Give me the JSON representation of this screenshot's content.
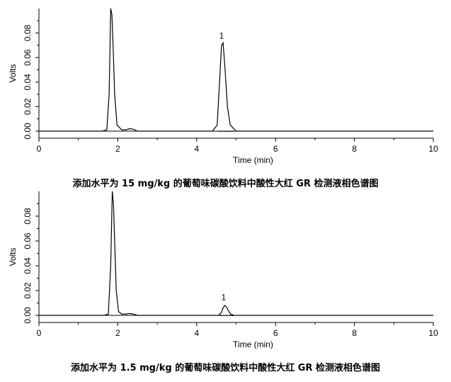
{
  "chart_data": [
    {
      "type": "line",
      "title": "",
      "caption": "添加水平为 15 mg/kg 的葡萄味碳酸饮料中酸性大红 GR 检测液相色谱图",
      "xlabel": "Time (min)",
      "ylabel": "Volts",
      "xlim": [
        0,
        10
      ],
      "ylim": [
        0,
        0.1
      ],
      "xticks": [
        "0",
        "2",
        "4",
        "6",
        "8",
        "10"
      ],
      "yticks": [
        "0.00",
        "0.02",
        "0.04",
        "0.06",
        "0.08"
      ],
      "grid": false,
      "series": [
        {
          "x": [
            0,
            1.6,
            1.72,
            1.78,
            1.82,
            1.85,
            1.88,
            1.92,
            1.98,
            2.1,
            2.2,
            2.3,
            2.4,
            2.5,
            4.4,
            4.52,
            4.58,
            4.63,
            4.67,
            4.72,
            4.78,
            4.85,
            5.0,
            10
          ],
          "y": [
            0,
            0,
            0.001,
            0.03,
            0.1,
            0.095,
            0.07,
            0.03,
            0.005,
            0.001,
            0.001,
            0.002,
            0.0015,
            0,
            0,
            0.005,
            0.04,
            0.07,
            0.072,
            0.05,
            0.02,
            0.005,
            0,
            0
          ]
        }
      ],
      "baseline_segment": {
        "x": [
          4.55,
          4.95
        ],
        "y": 0
      },
      "peak_label": {
        "text": "1",
        "x": 4.65,
        "y": 0.072
      }
    },
    {
      "type": "line",
      "title": "",
      "caption": "添加水平为 1.5 mg/kg 的葡萄味碳酸饮料中酸性大红 GR 检测液相色谱图",
      "xlabel": "Time (min)",
      "ylabel": "Volts",
      "xlim": [
        0,
        10
      ],
      "ylim": [
        0,
        0.1
      ],
      "xticks": [
        "0",
        "2",
        "4",
        "6",
        "8",
        "10"
      ],
      "yticks": [
        "0.00",
        "0.02",
        "0.04",
        "0.06",
        "0.08"
      ],
      "grid": false,
      "series": [
        {
          "x": [
            0,
            1.65,
            1.76,
            1.82,
            1.86,
            1.89,
            1.92,
            1.96,
            2.02,
            2.1,
            2.2,
            2.3,
            2.4,
            2.5,
            4.55,
            4.62,
            4.67,
            4.71,
            4.75,
            4.8,
            4.86,
            4.95,
            10
          ],
          "y": [
            0,
            0,
            0.001,
            0.04,
            0.1,
            0.09,
            0.06,
            0.02,
            0.003,
            0.001,
            0.001,
            0.0015,
            0.001,
            0,
            0,
            0.002,
            0.006,
            0.008,
            0.007,
            0.004,
            0.001,
            0,
            0
          ]
        }
      ],
      "baseline_segment": {
        "x": [
          4.6,
          4.95
        ],
        "y": 0
      },
      "peak_label": {
        "text": "1",
        "x": 4.7,
        "y": 0.009
      }
    }
  ]
}
